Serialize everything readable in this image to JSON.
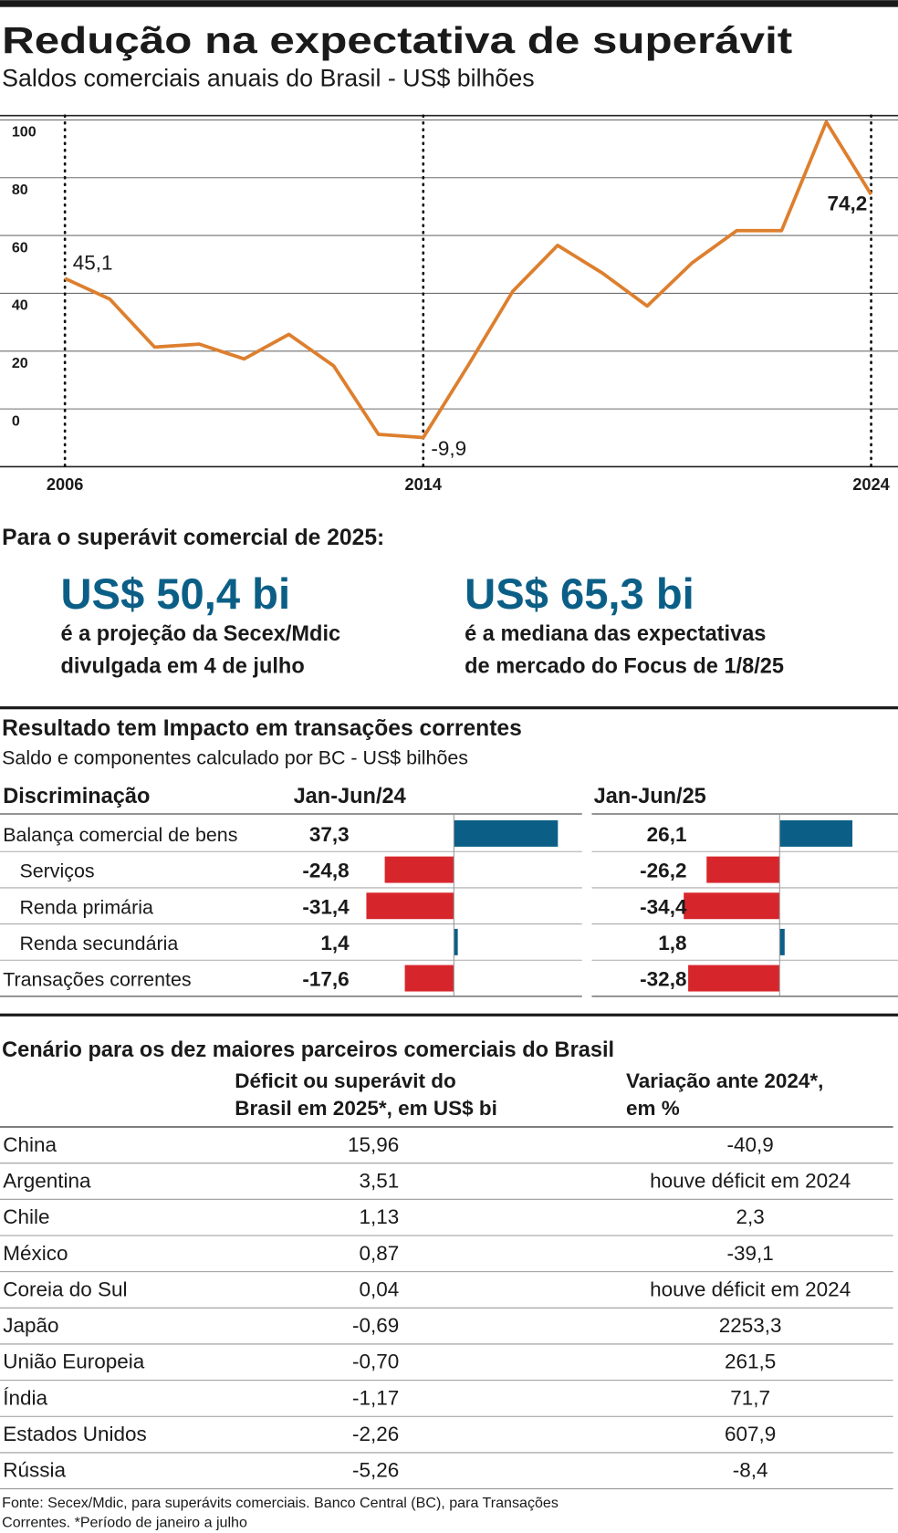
{
  "header": {
    "title": "Redução na expectativa de superávit",
    "subtitle": "Saldos comerciais anuais do Brasil - US$ bilhões"
  },
  "chart_data": [
    {
      "type": "line",
      "x": [
        2006,
        2007,
        2008,
        2009,
        2010,
        2011,
        2012,
        2013,
        2014,
        2015,
        2016,
        2017,
        2018,
        2019,
        2020,
        2021,
        2022,
        2023,
        2024
      ],
      "values": [
        45.1,
        38,
        21.4,
        22.4,
        17.3,
        25.8,
        14.9,
        -8.8,
        -9.9,
        15,
        40.7,
        56.6,
        47,
        35.6,
        50.5,
        61.7,
        61.7,
        99.3,
        74.2
      ],
      "value_labels": [
        "45,1",
        null,
        null,
        null,
        null,
        null,
        null,
        null,
        "-9,9",
        null,
        null,
        null,
        null,
        null,
        null,
        null,
        null,
        null,
        "74,2"
      ],
      "color": "#dd7f2e",
      "xlim": [
        2004.55,
        2024.6
      ],
      "ylim": [
        -20,
        101.5
      ],
      "xticks": [
        2006,
        2014,
        2024
      ],
      "yticks": [
        0,
        20,
        40,
        60,
        80,
        100
      ],
      "grid": true
    },
    {
      "type": "bar",
      "title": "Resultado tem Impacto em transações correntes",
      "subtitle": "Saldo e componentes calculado por BC - US$ bilhões",
      "category_header": "Discriminação",
      "categories": [
        "Balança comercial de bens",
        "Serviços",
        "Renda primária",
        "Renda secundária",
        "Transações correntes"
      ],
      "series": [
        {
          "name": "Jan-Jun/24",
          "values": [
            37.3,
            -24.8,
            -31.4,
            1.4,
            -17.6
          ],
          "value_labels": [
            "37,3",
            "-24,8",
            "-31,4",
            "1,4",
            "-17,6"
          ]
        },
        {
          "name": "Jan-Jun/25",
          "values": [
            26.1,
            -26.2,
            -34.4,
            1.8,
            -32.8
          ],
          "value_labels": [
            "26,1",
            "-26,2",
            "-34,4",
            "1,8",
            "-32,8"
          ]
        }
      ],
      "colors": {
        "positive": "#0b5f87",
        "negative": "#d7262b"
      }
    }
  ],
  "highlights": {
    "intro": "Para o superávit comercial de 2025:",
    "items": [
      {
        "value": "US$ 50,4 bi",
        "lines": [
          "é a projeção da  Secex/Mdic",
          "divulgada em 4 de julho"
        ]
      },
      {
        "value": "US$ 65,3 bi",
        "lines": [
          "é a mediana das expectativas",
          "de mercado do Focus de 1/8/25"
        ]
      }
    ]
  },
  "partners": {
    "title": "Cenário para os dez maiores parceiros comerciais do Brasil",
    "columns": [
      [
        "Déficit ou superávit do",
        "Brasil em 2025*, em US$ bi"
      ],
      [
        "Variação ante 2024*,",
        "em %"
      ]
    ],
    "rows": [
      [
        "China",
        "15,96",
        "-40,9"
      ],
      [
        "Argentina",
        "3,51",
        "houve déficit em 2024"
      ],
      [
        "Chile",
        "1,13",
        "2,3"
      ],
      [
        "México",
        "0,87",
        "-39,1"
      ],
      [
        "Coreia do Sul",
        "0,04",
        "houve déficit em 2024"
      ],
      [
        "Japão",
        "-0,69",
        "2253,3"
      ],
      [
        "União Europeia",
        "-0,70",
        "261,5"
      ],
      [
        "Índia",
        "-1,17",
        "71,7"
      ],
      [
        "Estados Unidos",
        "-2,26",
        "607,9"
      ],
      [
        "Rússia",
        "-5,26",
        "-8,4"
      ]
    ]
  },
  "footer": [
    "Fonte: Secex/Mdic, para superávits comerciais. Banco Central (BC), para Transações",
    "Correntes. *Período de janeiro a julho"
  ]
}
